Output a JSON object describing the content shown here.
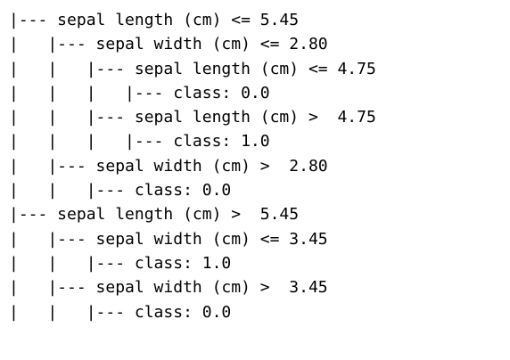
{
  "tree": {
    "lines": [
      "|--- sepal length (cm) <= 5.45",
      "|   |--- sepal width (cm) <= 2.80",
      "|   |   |--- sepal length (cm) <= 4.75",
      "|   |   |   |--- class: 0.0",
      "|   |   |--- sepal length (cm) >  4.75",
      "|   |   |   |--- class: 1.0",
      "|   |--- sepal width (cm) >  2.80",
      "|   |   |--- class: 0.0",
      "|--- sepal length (cm) >  5.45",
      "|   |--- sepal width (cm) <= 3.45",
      "|   |   |--- class: 1.0",
      "|   |--- sepal width (cm) >  3.45",
      "|   |   |--- class: 0.0"
    ]
  }
}
